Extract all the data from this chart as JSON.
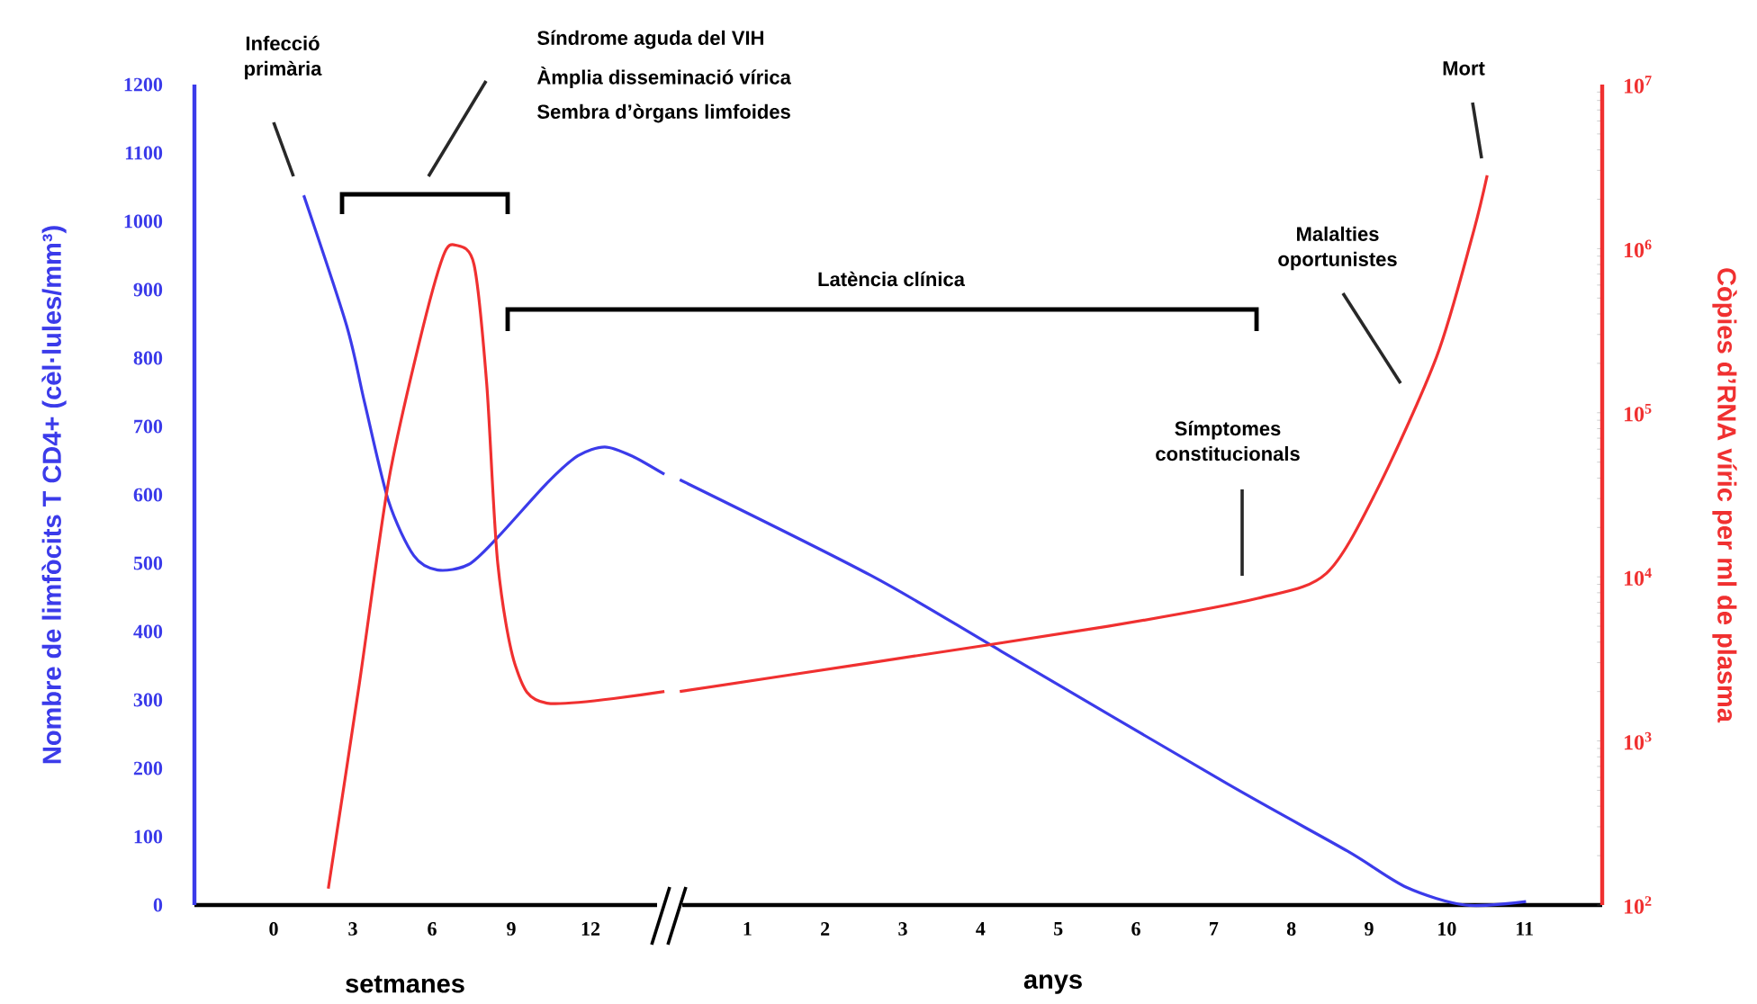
{
  "chart_data": [
    {
      "type": "line",
      "xlabel": "setmanes",
      "ylabel": "Nombre de limfòcits T CD4+ (cèl·lules/mm³)",
      "xlim": [
        -3,
        15
      ],
      "xticks": [
        0,
        3,
        6,
        9,
        12
      ],
      "ylim": [
        0,
        1200
      ],
      "yticks": [
        0,
        100,
        200,
        300,
        400,
        500,
        600,
        700,
        800,
        900,
        1000,
        1100,
        1200
      ],
      "y2lim": [
        100,
        10000000
      ],
      "log": "y2",
      "tick_labels": [
        "x",
        "y"
      ],
      "marker": "none",
      "line_style": "solid",
      "series": [
        {
          "color": "#3b3bea",
          "x": [
            1.14,
            2.76,
            3.45,
            4.35,
            5.31,
            6.21,
            7.38,
            8.49,
            10.35,
            11.52,
            12.54,
            13.56,
            14.8
          ],
          "values": [
            1038,
            848,
            734,
            591,
            511,
            490,
            498,
            538,
            617,
            657,
            670,
            657,
            630
          ]
        },
        {
          "color": "#f03030",
          "axis": "y2",
          "x": [
            2.07,
            3.24,
            4.35,
            5.52,
            6.42,
            6.9,
            7.59,
            8.07,
            8.49,
            9.18,
            10.35,
            14.8
          ],
          "values": [
            126,
            2200,
            38000,
            270000,
            900000,
            1050000,
            800000,
            150000,
            12000,
            2800,
            1700,
            2000
          ]
        }
      ],
      "annotations": [
        "Infecció primària",
        "Síndrome aguda del VIH",
        "Àmplia disseminació vírica",
        "Sembra d’òrgans limfoides"
      ]
    },
    {
      "type": "line",
      "xlabel": "anys",
      "y2label": "Còpies d’RNA víric per ml de plasma",
      "xlim": [
        0,
        12
      ],
      "xticks": [
        1,
        2,
        3,
        4,
        5,
        6,
        7,
        8,
        9,
        10,
        11
      ],
      "ylim": [
        0,
        1200
      ],
      "y2lim": [
        100,
        10000000
      ],
      "y2ticks": [
        {
          "value": 100,
          "label": "10$^{2}$"
        },
        {
          "value": 1000,
          "label": "10$^{3}$"
        },
        {
          "value": 10000,
          "label": "10$^{4}$"
        },
        {
          "value": 100000,
          "label": "10$^{5}$"
        },
        {
          "value": 1000000,
          "label": "10$^{6}$"
        },
        {
          "value": 10000000,
          "label": "10$^{7}$"
        }
      ],
      "log": "y2",
      "tick_labels": [
        "x",
        "y2"
      ],
      "marker": "none",
      "line_style": "solid",
      "series": [
        {
          "color": "#3b3bea",
          "x": [
            0.13,
            2.59,
            4.27,
            7.18,
            8.72,
            9.48,
            10.24,
            11.02
          ],
          "values": [
            622,
            482,
            371,
            177,
            79,
            26,
            0,
            5
          ]
        },
        {
          "color": "#f03030",
          "axis": "y2",
          "x": [
            0.13,
            2.59,
            5.64,
            7.57,
            8.45,
            9.09,
            9.87,
            10.33,
            10.52
          ],
          "values": [
            2000,
            3000,
            5000,
            7400,
            10500,
            33000,
            220000,
            1200000,
            2800000
          ]
        }
      ],
      "annotations": [
        "Latència clínica",
        "Símptomes constitucionals",
        "Malalties oportunistes",
        "Mort"
      ]
    }
  ]
}
